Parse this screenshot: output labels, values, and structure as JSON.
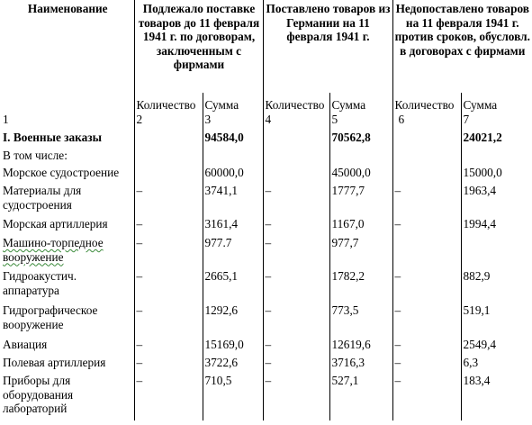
{
  "header": {
    "name": "Наименование",
    "col_a": "Подлежало поставке товаров до 11 февраля 1941 г. по договорам, заключенным с фирмами",
    "col_b": "Поставлено товаров из Германии на 11 февраля 1941 г.",
    "col_c": "Недопоставлено товаров на 11 февраля 1941 г. против сроков, обусловл. в договорах с фирмами"
  },
  "subheader": {
    "qty": "Количество",
    "sum": "Сумма"
  },
  "col_numbers": [
    "1",
    "2",
    "3",
    "4",
    "5",
    "6",
    "7"
  ],
  "rows": [
    {
      "name": "I. Военные заказы",
      "q1": "",
      "s1": "94584,0",
      "q2": "",
      "s2": "70562,8",
      "q3": "",
      "s3": "24021,2",
      "bold": true
    },
    {
      "name": "В том числе:",
      "q1": "",
      "s1": "",
      "q2": "",
      "s2": "",
      "q3": "",
      "s3": ""
    },
    {
      "name": "Морское судостроение",
      "q1": "",
      "s1": "60000,0",
      "q2": "",
      "s2": "45000,0",
      "q3": "",
      "s3": "15000,0"
    },
    {
      "name": "Материалы для судостроения",
      "q1": "–",
      "s1": "3741,1",
      "q2": "–",
      "s2": "1777,7",
      "q3": "–",
      "s3": "1963,4"
    },
    {
      "name": "Морская артиллерия",
      "q1": "–",
      "s1": "3161,4",
      "q2": "–",
      "s2": "1167,0",
      "q3": "–",
      "s3": "1994,4"
    },
    {
      "name": "Машино-торпедное вооружение",
      "q1": "–",
      "s1": "977.7",
      "q2": "–",
      "s2": "977,7",
      "q3": "",
      "s3": ""
    },
    {
      "name": "Гидроакустич. аппаратура",
      "q1": "–",
      "s1": "2665,1",
      "q2": "–",
      "s2": "1782,2",
      "q3": "–",
      "s3": "882,9"
    },
    {
      "name": "Гидрографическое вооружение",
      "q1": "–",
      "s1": "1292,6",
      "q2": "–",
      "s2": "773,5",
      "q3": "–",
      "s3": "519,1"
    },
    {
      "name": "Авиация",
      "q1": "–",
      "s1": "15169,0",
      "q2": "–",
      "s2": "12619,6",
      "q3": "–",
      "s3": "2549,4"
    },
    {
      "name": "Полевая артиллерия",
      "q1": "–",
      "s1": "3722,6",
      "q2": "–",
      "s2": "3716,3",
      "q3": "–",
      "s3": "6,3"
    },
    {
      "name": "Приборы для оборудования лабораторий",
      "q1": "–",
      "s1": "710,5",
      "q2": "–",
      "s2": "527,1",
      "q3": "–",
      "s3": "183,4"
    }
  ]
}
